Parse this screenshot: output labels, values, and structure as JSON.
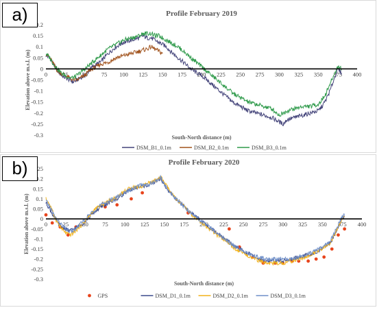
{
  "panels": [
    {
      "label": "a)",
      "chart_data": {
        "type": "line",
        "title": "Profile February 2019",
        "xlabel": "South-North distance (m)",
        "ylabel": "Elevation above m.s.l. (m)",
        "xlim": [
          0,
          400
        ],
        "ylim": [
          -0.3,
          0.2
        ],
        "xticks": [
          0,
          25,
          50,
          75,
          100,
          125,
          150,
          175,
          200,
          225,
          250,
          275,
          300,
          325,
          350,
          375,
          400
        ],
        "yticks": [
          -0.3,
          -0.25,
          -0.2,
          -0.15,
          -0.1,
          -0.05,
          0,
          0.05,
          0.1,
          0.15,
          0.2
        ],
        "zero_line": true,
        "grid": false,
        "legend_position": "bottom",
        "series": [
          {
            "name": "DSM_B1_0.1m",
            "color": "#44447a",
            "x": [
              0,
              5,
              10,
              15,
              20,
              25,
              30,
              35,
              40,
              45,
              50,
              60,
              70,
              80,
              90,
              100,
              110,
              120,
              125,
              130,
              135,
              140,
              145,
              150,
              155,
              160,
              170,
              180,
              190,
              200,
              210,
              220,
              230,
              240,
              250,
              260,
              270,
              280,
              290,
              300,
              305,
              310,
              320,
              330,
              340,
              350,
              355,
              360,
              365,
              370,
              375,
              380
            ],
            "y": [
              0.06,
              0.05,
              0.02,
              -0.01,
              -0.03,
              -0.04,
              -0.05,
              -0.06,
              -0.05,
              -0.04,
              -0.03,
              0.01,
              0.03,
              0.07,
              0.1,
              0.12,
              0.13,
              0.14,
              0.15,
              0.14,
              0.14,
              0.13,
              0.12,
              0.11,
              0.1,
              0.08,
              0.05,
              0.02,
              -0.01,
              -0.03,
              -0.06,
              -0.09,
              -0.12,
              -0.15,
              -0.17,
              -0.19,
              -0.2,
              -0.21,
              -0.22,
              -0.24,
              -0.25,
              -0.23,
              -0.22,
              -0.21,
              -0.2,
              -0.19,
              -0.17,
              -0.14,
              -0.1,
              -0.05,
              0.0,
              -0.02
            ]
          },
          {
            "name": "DSM_B2_0.1m",
            "color": "#a0521c",
            "x": [
              0,
              5,
              10,
              15,
              20,
              25,
              30,
              35,
              40,
              45,
              50,
              55,
              60,
              70,
              80,
              90,
              100,
              110,
              120,
              130,
              135,
              140,
              145,
              150
            ],
            "y": [
              0.07,
              0.05,
              0.02,
              -0.01,
              -0.02,
              -0.03,
              -0.04,
              -0.05,
              -0.05,
              -0.04,
              -0.03,
              -0.01,
              0.0,
              0.02,
              0.03,
              0.05,
              0.06,
              0.07,
              0.08,
              0.09,
              0.1,
              0.09,
              0.08,
              0.07
            ]
          },
          {
            "name": "DSM_B3_0.1m",
            "color": "#2e9a4a",
            "x": [
              0,
              5,
              10,
              15,
              20,
              25,
              30,
              35,
              40,
              50,
              60,
              70,
              80,
              90,
              100,
              110,
              120,
              125,
              130,
              135,
              140,
              145,
              150,
              160,
              170,
              180,
              190,
              200,
              210,
              220,
              230,
              240,
              250,
              260,
              270,
              280,
              290,
              300,
              305,
              310,
              320,
              330,
              340,
              350,
              355,
              360,
              365,
              370,
              375,
              380
            ],
            "y": [
              0.07,
              0.05,
              0.02,
              0.0,
              -0.02,
              -0.03,
              -0.04,
              -0.04,
              -0.03,
              0.0,
              0.03,
              0.06,
              0.09,
              0.11,
              0.13,
              0.14,
              0.15,
              0.16,
              0.16,
              0.16,
              0.15,
              0.15,
              0.14,
              0.12,
              0.1,
              0.07,
              0.04,
              0.01,
              -0.02,
              -0.05,
              -0.08,
              -0.11,
              -0.13,
              -0.15,
              -0.16,
              -0.17,
              -0.18,
              -0.21,
              -0.2,
              -0.19,
              -0.18,
              -0.17,
              -0.17,
              -0.16,
              -0.14,
              -0.11,
              -0.07,
              -0.03,
              0.01,
              0.0
            ]
          }
        ]
      }
    },
    {
      "label": "b)",
      "chart_data": {
        "type": "line",
        "title": "Profile February 2020",
        "xlabel": "South-North distance (m)",
        "ylabel": "Elevation above m.s.l. (m)",
        "xlim": [
          0,
          400
        ],
        "ylim": [
          -0.3,
          0.25
        ],
        "xticks": [
          0,
          25,
          50,
          75,
          100,
          125,
          150,
          175,
          200,
          225,
          250,
          275,
          300,
          325,
          350,
          375,
          400
        ],
        "yticks": [
          -0.3,
          -0.25,
          -0.2,
          -0.15,
          -0.1,
          -0.05,
          0,
          0.05,
          0.1,
          0.15,
          0.2,
          0.25
        ],
        "zero_line": true,
        "grid": false,
        "legend_position": "bottom",
        "series": [
          {
            "name": "GPS",
            "color": "#e8441c",
            "marker": "point",
            "x": [
              0,
              8,
              18,
              28,
              38,
              75,
              90,
              108,
              122,
              180,
              232,
              245,
              262,
              275,
              290,
              300,
              312,
              320,
              332,
              342,
              352,
              362,
              370,
              378
            ],
            "y": [
              0.02,
              -0.02,
              -0.04,
              -0.08,
              -0.04,
              0.06,
              0.07,
              0.1,
              0.13,
              0.03,
              -0.05,
              -0.14,
              -0.19,
              -0.22,
              -0.22,
              -0.22,
              -0.21,
              -0.21,
              -0.21,
              -0.2,
              -0.19,
              -0.15,
              -0.08,
              -0.05
            ]
          },
          {
            "name": "DSM_D1_0.1m",
            "color": "#3b4a8c",
            "x": [
              0,
              5,
              10,
              15,
              20,
              25,
              30,
              35,
              40,
              45,
              50,
              60,
              70,
              80,
              90,
              100,
              110,
              120,
              130,
              140,
              145,
              150,
              155,
              160,
              170,
              180,
              190,
              200,
              210,
              220,
              230,
              240,
              250,
              260,
              270,
              280,
              290,
              300,
              310,
              320,
              330,
              340,
              350,
              360,
              365,
              370,
              375,
              378
            ],
            "y": [
              0.08,
              0.05,
              0.01,
              -0.02,
              -0.04,
              -0.05,
              -0.06,
              -0.05,
              -0.04,
              -0.03,
              -0.01,
              0.03,
              0.06,
              0.08,
              0.1,
              0.13,
              0.15,
              0.16,
              0.17,
              0.19,
              0.2,
              0.17,
              0.14,
              0.12,
              0.08,
              0.04,
              0.01,
              -0.02,
              -0.05,
              -0.08,
              -0.11,
              -0.14,
              -0.16,
              -0.18,
              -0.2,
              -0.21,
              -0.21,
              -0.21,
              -0.2,
              -0.19,
              -0.18,
              -0.17,
              -0.15,
              -0.12,
              -0.08,
              -0.04,
              0.0,
              0.01
            ]
          },
          {
            "name": "DSM_D2_0.1m",
            "color": "#f2b21a",
            "x": [
              0,
              5,
              10,
              15,
              20,
              25,
              30,
              35,
              40,
              45,
              50,
              60,
              70,
              80,
              90,
              100,
              110,
              120,
              130,
              140,
              145,
              150,
              155,
              160,
              170,
              180,
              190,
              200,
              210,
              220,
              230,
              240,
              250,
              260,
              270,
              280,
              290,
              300,
              310,
              320,
              330,
              340,
              350,
              360,
              365,
              370,
              375,
              378
            ],
            "y": [
              0.1,
              0.07,
              0.02,
              -0.02,
              -0.05,
              -0.07,
              -0.08,
              -0.07,
              -0.05,
              -0.03,
              -0.01,
              0.04,
              0.07,
              0.09,
              0.11,
              0.14,
              0.16,
              0.16,
              0.18,
              0.19,
              0.21,
              0.18,
              0.15,
              0.12,
              0.08,
              0.04,
              0.0,
              -0.03,
              -0.06,
              -0.09,
              -0.12,
              -0.15,
              -0.17,
              -0.19,
              -0.21,
              -0.22,
              -0.22,
              -0.22,
              -0.21,
              -0.2,
              -0.19,
              -0.17,
              -0.15,
              -0.12,
              -0.08,
              -0.04,
              0.0,
              0.01
            ]
          },
          {
            "name": "DSM_D3_0.1m",
            "color": "#6f8fc8",
            "x": [
              0,
              5,
              10,
              15,
              20,
              25,
              30,
              35,
              40,
              45,
              50,
              60,
              70,
              80,
              90,
              100,
              110,
              120,
              130,
              140,
              145,
              150,
              155,
              160,
              170,
              180,
              190,
              200,
              210,
              220,
              230,
              240,
              250,
              260,
              270,
              280,
              290,
              300,
              310,
              320,
              330,
              340,
              350,
              360,
              365,
              370,
              375,
              378
            ],
            "y": [
              0.09,
              0.06,
              0.02,
              -0.01,
              -0.03,
              -0.05,
              -0.06,
              -0.06,
              -0.04,
              -0.02,
              0.0,
              0.04,
              0.07,
              0.09,
              0.11,
              0.13,
              0.15,
              0.17,
              0.17,
              0.19,
              0.21,
              0.17,
              0.14,
              0.12,
              0.08,
              0.04,
              0.01,
              -0.02,
              -0.05,
              -0.08,
              -0.11,
              -0.14,
              -0.16,
              -0.18,
              -0.19,
              -0.2,
              -0.2,
              -0.2,
              -0.2,
              -0.19,
              -0.18,
              -0.16,
              -0.14,
              -0.11,
              -0.07,
              -0.03,
              0.01,
              0.02
            ]
          }
        ]
      }
    }
  ]
}
